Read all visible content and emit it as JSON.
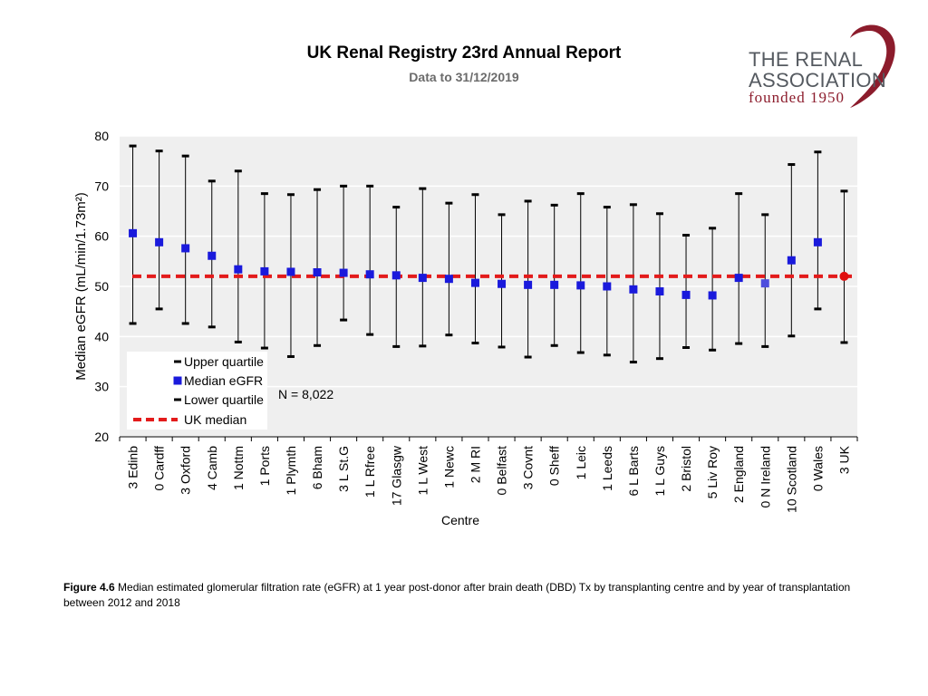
{
  "header": {
    "title": "UK Renal Registry 23rd Annual Report",
    "subtitle": "Data to 31/12/2019"
  },
  "logo": {
    "line1": "THE RENAL",
    "line2": "ASSOCIATION",
    "line3": "founded 1950",
    "swirl_color": "#8c1c2c"
  },
  "chart_data": {
    "type": "scatter",
    "subtype": "median-with-interquartile-range",
    "ylabel": "Median eGFR (mL/min/1.73m²)",
    "xlabel": "Centre",
    "ylim": [
      20,
      80
    ],
    "yticks": [
      20,
      30,
      40,
      50,
      60,
      70,
      80
    ],
    "uk_median": 52,
    "annotation": "N = 8,022",
    "legend": {
      "placement": "bottom-left",
      "entries": [
        "Upper quartile",
        "Median eGFR",
        "Lower quartile",
        "UK median"
      ]
    },
    "categories": [
      "3 Edinb",
      "0 Cardff",
      "3 Oxford",
      "4 Camb",
      "1 Nottm",
      "1 Ports",
      "1 Plymth",
      "6 Bham",
      "3 L St.G",
      "1 L Rfree",
      "17 Glasgw",
      "1 L West",
      "1 Newc",
      "2 M RI",
      "0 Belfast",
      "3 Covnt",
      "0 Sheff",
      "1 Leic",
      "1 Leeds",
      "6 L Barts",
      "1 L Guys",
      "2 Bristol",
      "5 Liv Roy",
      "2 England",
      "0 N Ireland",
      "10 Scotland",
      "0 Wales",
      "3 UK"
    ],
    "series": [
      {
        "name": "Upper quartile",
        "values": [
          78,
          77,
          76,
          71,
          73,
          68.5,
          68.3,
          69.3,
          70,
          70,
          65.8,
          69.5,
          66.6,
          68.3,
          64.3,
          67,
          66.2,
          68.5,
          65.8,
          66.3,
          64.5,
          60.2,
          61.6,
          68.5,
          64.3,
          74.3,
          76.8,
          69
        ]
      },
      {
        "name": "Median eGFR",
        "values": [
          60.6,
          58.8,
          57.6,
          56.1,
          53.4,
          53,
          52.9,
          52.8,
          52.7,
          52.4,
          52.2,
          51.7,
          51.5,
          50.7,
          50.5,
          50.3,
          50.3,
          50.2,
          50,
          49.4,
          49,
          48.3,
          48.2,
          51.7,
          50.6,
          55.2,
          58.8,
          52
        ]
      },
      {
        "name": "Lower quartile",
        "values": [
          42.6,
          45.5,
          42.6,
          41.9,
          38.9,
          37.7,
          36,
          38.2,
          43.3,
          40.4,
          38,
          38.1,
          40.3,
          38.7,
          37.9,
          35.9,
          38.2,
          36.8,
          36.3,
          34.9,
          35.6,
          37.8,
          37.3,
          38.6,
          38,
          40.1,
          45.5,
          38.8
        ]
      }
    ],
    "colors": {
      "median_marker": "#1a1adc",
      "n_ireland_marker": "#4d4ddd",
      "uk_marker": "#e01010",
      "uk_median_line": "#e31b1b",
      "plot_background": "#efefef",
      "gridline": "#ffffff",
      "whisker": "#000000"
    }
  },
  "caption": {
    "label": "Figure 4.6",
    "text": " Median estimated glomerular filtration rate (eGFR) at 1 year post-donor after brain death (DBD) Tx by transplanting centre and by year of transplantation between 2012 and 2018"
  }
}
